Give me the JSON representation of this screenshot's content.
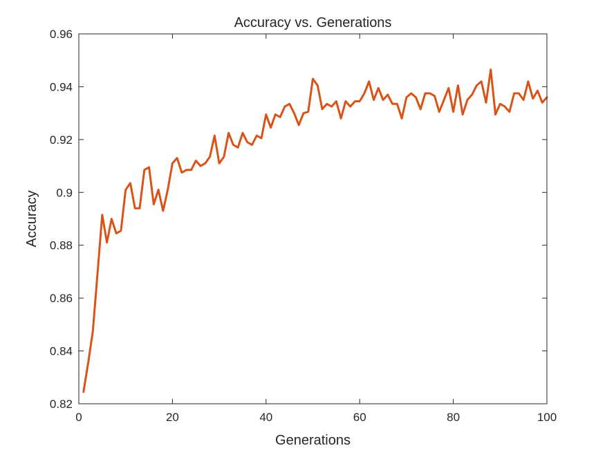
{
  "chart_data": {
    "type": "line",
    "title": "Accuracy vs. Generations",
    "xlabel": "Generations",
    "ylabel": "Accuracy",
    "xlim": [
      0,
      100
    ],
    "ylim": [
      0.82,
      0.96
    ],
    "xticks": [
      0,
      20,
      40,
      60,
      80,
      100
    ],
    "xtick_labels": [
      "0",
      "20",
      "40",
      "60",
      "80",
      "100"
    ],
    "yticks": [
      0.82,
      0.84,
      0.86,
      0.88,
      0.9,
      0.92,
      0.94,
      0.96
    ],
    "ytick_labels": [
      "0.82",
      "0.84",
      "0.86",
      "0.88",
      "0.9",
      "0.92",
      "0.94",
      "0.96"
    ],
    "grid": false,
    "series": [
      {
        "color": "#D95319",
        "x": [
          1,
          2,
          3,
          4,
          5,
          6,
          7,
          8,
          9,
          10,
          11,
          12,
          13,
          14,
          15,
          16,
          17,
          18,
          19,
          20,
          21,
          22,
          23,
          24,
          25,
          26,
          27,
          28,
          29,
          30,
          31,
          32,
          33,
          34,
          35,
          36,
          37,
          38,
          39,
          40,
          41,
          42,
          43,
          44,
          45,
          46,
          47,
          48,
          49,
          50,
          51,
          52,
          53,
          54,
          55,
          56,
          57,
          58,
          59,
          60,
          61,
          62,
          63,
          64,
          65,
          66,
          67,
          68,
          69,
          70,
          71,
          72,
          73,
          74,
          75,
          76,
          77,
          78,
          79,
          80,
          81,
          82,
          83,
          84,
          85,
          86,
          87,
          88,
          89,
          90,
          91,
          92,
          93,
          94,
          95,
          96,
          97,
          98,
          99,
          100
        ],
        "y": [
          0.8245,
          0.8355,
          0.8475,
          0.8695,
          0.8915,
          0.881,
          0.89,
          0.8845,
          0.8855,
          0.901,
          0.9035,
          0.894,
          0.894,
          0.9085,
          0.9095,
          0.8955,
          0.901,
          0.893,
          0.901,
          0.911,
          0.913,
          0.9075,
          0.9085,
          0.9085,
          0.912,
          0.91,
          0.911,
          0.9135,
          0.9215,
          0.911,
          0.9135,
          0.9225,
          0.918,
          0.917,
          0.9225,
          0.919,
          0.918,
          0.9215,
          0.9205,
          0.9295,
          0.9245,
          0.9295,
          0.9285,
          0.9325,
          0.9335,
          0.93,
          0.9255,
          0.93,
          0.9305,
          0.943,
          0.9405,
          0.9315,
          0.9335,
          0.9325,
          0.9345,
          0.928,
          0.9345,
          0.9325,
          0.9345,
          0.9345,
          0.9375,
          0.942,
          0.935,
          0.9395,
          0.935,
          0.937,
          0.9335,
          0.9335,
          0.928,
          0.936,
          0.9375,
          0.936,
          0.9315,
          0.9375,
          0.9375,
          0.9365,
          0.9305,
          0.935,
          0.9395,
          0.9305,
          0.9405,
          0.9295,
          0.935,
          0.937,
          0.9405,
          0.942,
          0.934,
          0.9465,
          0.9295,
          0.9335,
          0.9325,
          0.9305,
          0.9375,
          0.9375,
          0.935,
          0.942,
          0.9355,
          0.9385,
          0.934,
          0.936
        ]
      }
    ]
  }
}
